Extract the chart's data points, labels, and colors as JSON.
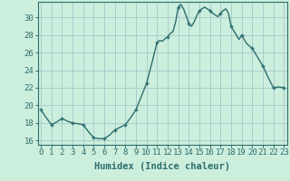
{
  "x_values": [
    0,
    0.5,
    1,
    1.5,
    2,
    2.5,
    3,
    3.5,
    4,
    4.5,
    5,
    5.5,
    6,
    6.5,
    7,
    7.5,
    8,
    8.5,
    9,
    9.5,
    10,
    10.5,
    11,
    11.25,
    11.5,
    11.75,
    12,
    12.25,
    12.5,
    12.75,
    13,
    13.25,
    13.5,
    13.75,
    14,
    14.25,
    14.5,
    14.75,
    15,
    15.25,
    15.5,
    15.75,
    16,
    16.25,
    16.5,
    16.75,
    17,
    17.25,
    17.5,
    17.75,
    18,
    18.25,
    18.5,
    18.75,
    19,
    19.5,
    20,
    20.5,
    21,
    21.5,
    22,
    22.5,
    23
  ],
  "y_values": [
    19.5,
    18.6,
    17.8,
    18.1,
    18.5,
    18.2,
    18.0,
    17.9,
    17.8,
    17.0,
    16.3,
    16.2,
    16.2,
    16.6,
    17.2,
    17.5,
    17.8,
    18.6,
    19.5,
    21.0,
    22.5,
    24.8,
    27.2,
    27.4,
    27.3,
    27.6,
    27.8,
    28.2,
    28.4,
    29.5,
    31.2,
    31.5,
    31.0,
    30.2,
    29.3,
    29.0,
    29.5,
    30.2,
    30.8,
    31.0,
    31.2,
    31.0,
    30.8,
    30.5,
    30.3,
    30.1,
    30.5,
    30.8,
    31.0,
    30.5,
    29.0,
    28.5,
    28.0,
    27.5,
    28.0,
    27.0,
    26.5,
    25.5,
    24.5,
    23.2,
    22.0,
    22.1,
    22.0
  ],
  "marker_x": [
    0,
    1,
    2,
    3,
    4,
    5,
    6,
    7,
    8,
    9,
    10,
    11,
    12,
    13,
    14,
    15,
    16,
    17,
    18,
    19,
    20,
    21,
    22,
    23
  ],
  "marker_y": [
    19.5,
    17.8,
    18.5,
    18.0,
    17.8,
    16.3,
    16.2,
    17.2,
    17.8,
    19.5,
    22.5,
    27.2,
    27.8,
    31.2,
    29.3,
    30.8,
    30.8,
    30.5,
    29.0,
    28.0,
    26.5,
    24.5,
    22.0,
    22.0
  ],
  "line_color": "#2d6e6e",
  "bg_color": "#cceedd",
  "grid_color": "#aacccc",
  "xlabel": "Humidex (Indice chaleur)",
  "ylim": [
    15.5,
    31.8
  ],
  "xlim": [
    -0.3,
    23.3
  ],
  "yticks": [
    16,
    18,
    20,
    22,
    24,
    26,
    28,
    30
  ],
  "xticks": [
    0,
    1,
    2,
    3,
    4,
    5,
    6,
    7,
    8,
    9,
    10,
    11,
    12,
    13,
    14,
    15,
    16,
    17,
    18,
    19,
    20,
    21,
    22,
    23
  ],
  "xlabel_fontsize": 7.5,
  "tick_fontsize": 6.5,
  "line_width": 1.0,
  "marker_size": 3.5
}
